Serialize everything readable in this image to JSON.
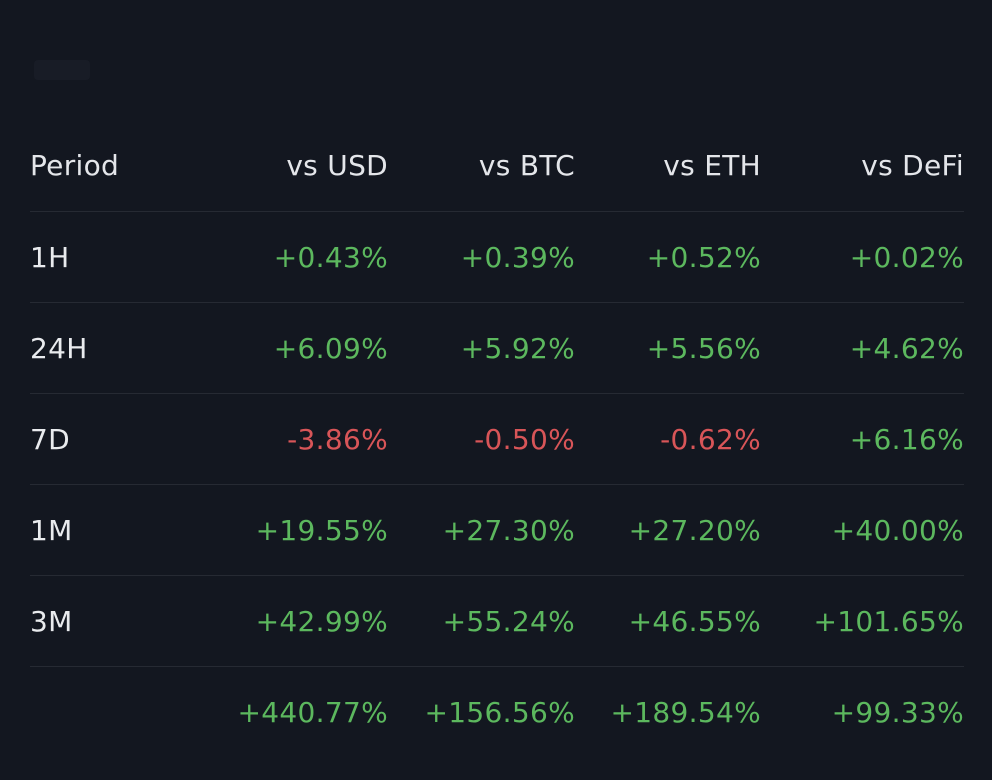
{
  "table": {
    "headers": {
      "period": "Period",
      "usd": "vs USD",
      "btc": "vs BTC",
      "eth": "vs ETH",
      "defi": "vs DeFi"
    },
    "rows": [
      {
        "period": "1H",
        "usd": "+0.43%",
        "btc": "+0.39%",
        "eth": "+0.52%",
        "defi": "+0.02%"
      },
      {
        "period": "24H",
        "usd": "+6.09%",
        "btc": "+5.92%",
        "eth": "+5.56%",
        "defi": "+4.62%"
      },
      {
        "period": "7D",
        "usd": "-3.86%",
        "btc": "-0.50%",
        "eth": "-0.62%",
        "defi": "+6.16%"
      },
      {
        "period": "1M",
        "usd": "+19.55%",
        "btc": "+27.30%",
        "eth": "+27.20%",
        "defi": "+40.00%"
      },
      {
        "period": "3M",
        "usd": "+42.99%",
        "btc": "+55.24%",
        "eth": "+46.55%",
        "defi": "+101.65%"
      },
      {
        "period": "",
        "usd": "+440.77%",
        "btc": "+156.56%",
        "eth": "+189.54%",
        "defi": "+99.33%"
      }
    ]
  },
  "colors": {
    "background": "#131720",
    "positive": "#5cb85e",
    "negative": "#d85558",
    "text": "#e9ebee",
    "divider": "#262a33"
  }
}
